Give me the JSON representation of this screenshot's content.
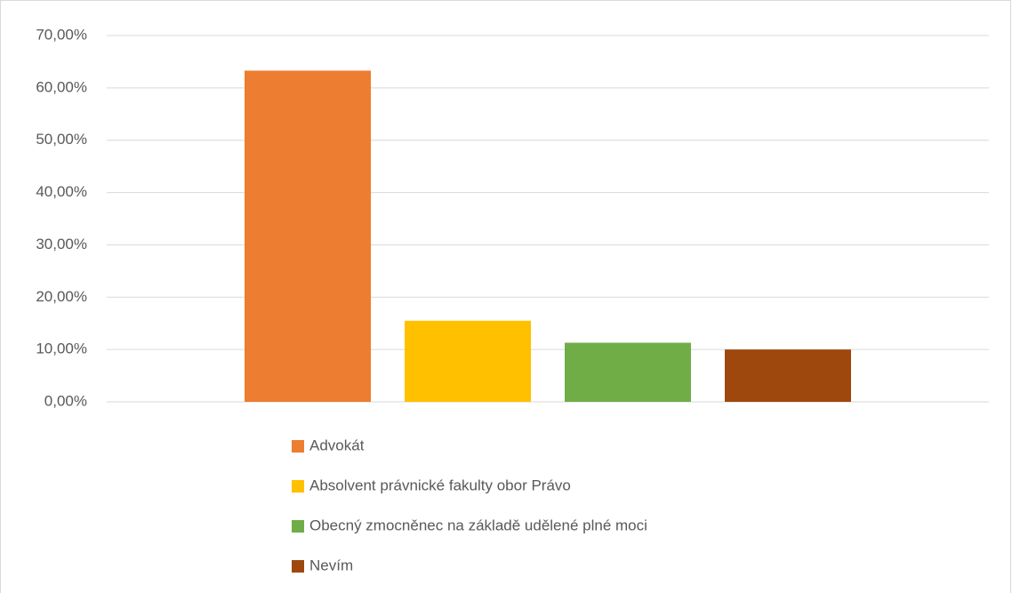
{
  "chart_data": {
    "type": "bar",
    "categories": [
      null
    ],
    "series": [
      {
        "name": "Advokát",
        "color": "#ed7d31",
        "values": [
          63.3
        ]
      },
      {
        "name": "Absolvent právnické fakulty obor Právo",
        "color": "#ffc000",
        "values": [
          15.5
        ]
      },
      {
        "name": "Obecný zmocněnec na základě udělené plné moci",
        "color": "#70ad47",
        "values": [
          11.3
        ]
      },
      {
        "name": "Nevím",
        "color": "#9e480e",
        "values": [
          10.0
        ]
      }
    ],
    "ylim": [
      0,
      70
    ],
    "yticks": [
      {
        "value": 0,
        "label": "0,00%"
      },
      {
        "value": 10,
        "label": "10,00%"
      },
      {
        "value": 20,
        "label": "20,00%"
      },
      {
        "value": 30,
        "label": "30,00%"
      },
      {
        "value": 40,
        "label": "40,00%"
      },
      {
        "value": 50,
        "label": "50,00%"
      },
      {
        "value": 60,
        "label": "60,00%"
      },
      {
        "value": 70,
        "label": "70,00%"
      }
    ],
    "grid": true,
    "legend": "bottom"
  }
}
